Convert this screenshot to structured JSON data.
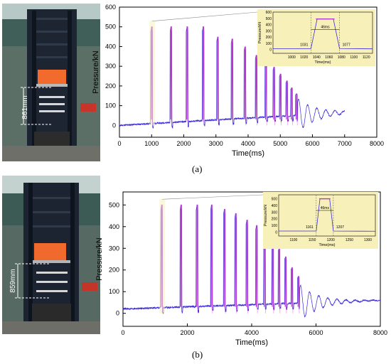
{
  "photos": [
    {
      "dimension_label": "861mm"
    },
    {
      "dimension_label": "859mm"
    }
  ],
  "panel_labels": [
    "(a)",
    "(b)"
  ],
  "chart_data": [
    {
      "type": "line",
      "panel": "(a)",
      "xlabel": "Time(ms)",
      "ylabel": "Pressure/kN",
      "xlim": [
        0,
        8000
      ],
      "ylim": [
        -60,
        600
      ],
      "xticks": [
        0,
        1000,
        2000,
        3000,
        4000,
        5000,
        6000,
        7000,
        8000
      ],
      "yticks": [
        0,
        100,
        200,
        300,
        400,
        500,
        600
      ],
      "grid": false,
      "series": [
        {
          "color": "#3b2bd9",
          "peaks": [
            {
              "t": 1000,
              "p": 500
            },
            {
              "t": 1600,
              "p": 500
            },
            {
              "t": 2100,
              "p": 500
            },
            {
              "t": 2600,
              "p": 500
            },
            {
              "t": 3050,
              "p": 448
            },
            {
              "t": 3500,
              "p": 438
            },
            {
              "t": 3900,
              "p": 398
            },
            {
              "t": 4250,
              "p": 355
            },
            {
              "t": 4550,
              "p": 328
            },
            {
              "t": 4800,
              "p": 295
            },
            {
              "t": 5000,
              "p": 260
            },
            {
              "t": 5200,
              "p": 225
            },
            {
              "t": 5350,
              "p": 190
            },
            {
              "t": 5500,
              "p": 160
            }
          ],
          "baseline_start": 0,
          "baseline_end": 65,
          "end_time": 7000
        }
      ],
      "inset": {
        "xlabel": "Time(ms)",
        "ylabel": "Pressure/kN",
        "xlim": [
          970,
          1130
        ],
        "ylim": [
          -60,
          600
        ],
        "xticks": [
          1000,
          1020,
          1040,
          1060,
          1080,
          1100,
          1120
        ],
        "yticks": [
          0,
          100,
          200,
          300,
          400,
          500,
          600
        ],
        "rise_start": 1031,
        "fall_end": 1077,
        "plateau": 490,
        "annotations": [
          "1031",
          "1077",
          "46ms"
        ],
        "background": "#f7f0b8"
      }
    },
    {
      "type": "line",
      "panel": "(b)",
      "xlabel": "Time(ms)",
      "ylabel": "Pressure/kN",
      "xlim": [
        0,
        8000
      ],
      "ylim": [
        -60,
        560
      ],
      "xticks": [
        0,
        2000,
        4000,
        6000,
        8000
      ],
      "yticks": [
        0,
        100,
        200,
        300,
        400,
        500
      ],
      "grid": false,
      "series": [
        {
          "color": "#3b2bd9",
          "peaks": [
            {
              "t": 1200,
              "p": 500
            },
            {
              "t": 1800,
              "p": 500
            },
            {
              "t": 2300,
              "p": 500
            },
            {
              "t": 2750,
              "p": 500
            },
            {
              "t": 3150,
              "p": 480
            },
            {
              "t": 3500,
              "p": 460
            },
            {
              "t": 3850,
              "p": 430
            },
            {
              "t": 4150,
              "p": 405
            },
            {
              "t": 4400,
              "p": 375
            },
            {
              "t": 4650,
              "p": 345
            },
            {
              "t": 4850,
              "p": 300
            },
            {
              "t": 5050,
              "p": 260
            },
            {
              "t": 5250,
              "p": 210
            },
            {
              "t": 5450,
              "p": 170
            }
          ],
          "baseline_start": 20,
          "baseline_end": 60,
          "end_time": 8000
        }
      ],
      "inset": {
        "xlabel": "Time(ms)",
        "ylabel": "Pressure/kN",
        "xlim": [
          1060,
          1320
        ],
        "ylim": [
          -60,
          560
        ],
        "xticks": [
          1100,
          1150,
          1200,
          1250,
          1300
        ],
        "yticks": [
          0,
          100,
          200,
          300,
          400,
          500
        ],
        "rise_start": 1161,
        "fall_end": 1207,
        "plateau": 500,
        "annotations": [
          "1161",
          "1207",
          "46ms"
        ],
        "background": "#f7f0b8"
      }
    }
  ]
}
